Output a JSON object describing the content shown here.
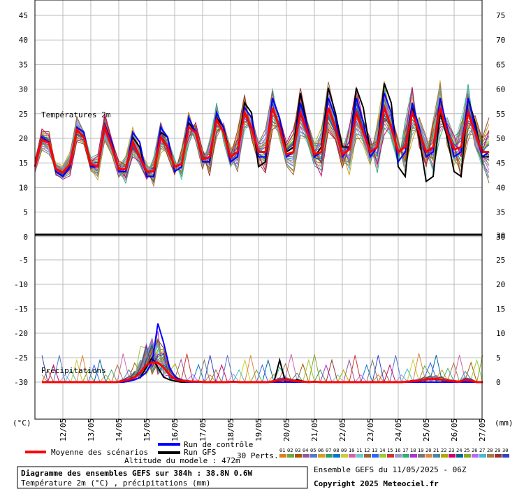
{
  "chart_data": [
    {
      "type": "line",
      "panel": "temperature",
      "annotation": "Températures 2m",
      "x_tick_labels": [
        "12/05",
        "13/05",
        "14/05",
        "15/05",
        "16/05",
        "17/05",
        "18/05",
        "19/05",
        "20/05",
        "21/05",
        "22/05",
        "23/05",
        "24/05",
        "25/05",
        "26/05",
        "27/05"
      ],
      "y_left_ticks": [
        "45",
        "40",
        "35",
        "30",
        "25",
        "20",
        "15",
        "10",
        "5",
        "0"
      ],
      "y_right_ticks": [
        "75",
        "70",
        "65",
        "60",
        "55",
        "50",
        "45",
        "40",
        "35",
        "30"
      ],
      "ylim": [
        0,
        47
      ],
      "series": [
        {
          "name": "Moyenne des scénarios",
          "color": "#ff0000",
          "values": [
            14,
            19.5,
            18.8,
            13.5,
            12.8,
            14.5,
            21.5,
            20,
            14.5,
            14,
            22,
            18,
            13.5,
            13.5,
            19,
            16,
            13,
            13,
            20,
            18,
            14,
            14.5,
            22,
            21,
            15.5,
            16,
            23.5,
            21,
            16,
            17,
            25,
            22,
            17,
            17,
            26,
            22,
            16.5,
            17,
            25,
            21,
            16.5,
            17,
            26,
            22,
            16.5,
            17.5,
            25,
            21,
            17,
            18,
            26,
            22,
            17,
            18,
            25,
            21,
            17,
            18,
            26,
            21,
            17.5,
            18,
            25,
            21,
            17,
            17
          ]
        },
        {
          "name": "Run de contrôle",
          "color": "#0000ff",
          "values": [
            14,
            20,
            19,
            13,
            12,
            14,
            22,
            21,
            14,
            14,
            22.5,
            19,
            13,
            13,
            21,
            19,
            12,
            12,
            22,
            20,
            13,
            14,
            24,
            21,
            15,
            15,
            25,
            22,
            15,
            16,
            26,
            24,
            16,
            16,
            28,
            24,
            16,
            17,
            27,
            22,
            16,
            17,
            28,
            24,
            16,
            18,
            28,
            23,
            16,
            18,
            29,
            25,
            15,
            17,
            27,
            22,
            16,
            17,
            28,
            22,
            16,
            17,
            28,
            22,
            16,
            17
          ]
        },
        {
          "name": "Run GFS",
          "color": "#000000",
          "values": [
            14,
            20,
            19,
            13,
            12,
            14,
            22,
            21,
            14,
            14,
            22,
            19,
            13,
            13,
            20,
            18,
            12,
            12,
            21,
            20,
            13,
            14,
            23,
            21,
            15,
            15,
            24,
            22,
            16,
            17,
            27,
            25,
            14,
            15,
            28,
            24,
            17,
            18,
            29,
            22,
            16,
            18,
            30,
            25,
            18,
            18,
            30,
            26,
            17,
            18,
            31,
            27,
            14,
            12,
            26,
            20,
            11,
            12,
            25,
            20,
            13,
            12,
            28,
            23,
            16,
            16
          ]
        }
      ]
    },
    {
      "type": "line",
      "panel": "precipitation",
      "annotation": "Précipitations",
      "unit_left": "(°C)",
      "unit_right": "(mm)",
      "y_left_ticks": [
        "-5",
        "-10",
        "-15",
        "-20",
        "-25",
        "-30"
      ],
      "y_right_ticks": [
        "30",
        "25",
        "20",
        "15",
        "10",
        "5",
        "0"
      ],
      "ylim": [
        0,
        30
      ],
      "series": [
        {
          "name": "Moyenne des scénarios",
          "color": "#ff0000",
          "values": [
            0,
            0,
            0,
            0,
            0,
            0,
            0,
            0,
            0,
            0,
            0,
            0,
            0,
            0,
            0.3,
            0.5,
            1,
            2,
            3.5,
            4,
            4,
            3,
            1.5,
            0.6,
            0.3,
            0.2,
            0.1,
            0.1,
            0,
            0,
            0,
            0,
            0,
            0.1,
            0,
            0,
            0,
            0,
            0,
            0,
            0.2,
            0.4,
            0.5,
            0.3,
            0.2,
            0.1,
            0,
            0.1,
            0,
            0,
            0,
            0,
            0,
            0,
            0,
            0,
            0,
            0,
            0,
            0,
            0,
            0,
            0,
            0.1,
            0.2,
            0.3,
            0.5,
            0.6,
            0.6,
            0.5,
            0.3,
            0.2,
            0.1,
            0.5,
            0.3,
            0,
            0
          ]
        },
        {
          "name": "Run de contrôle",
          "color": "#0000ff",
          "values": [
            0,
            0,
            0,
            0,
            0,
            0,
            0,
            0,
            0,
            0,
            0,
            0,
            0,
            0,
            0,
            0.2,
            0.5,
            1,
            2,
            4,
            12,
            8,
            3,
            1,
            0.5,
            0,
            0,
            0,
            0,
            0,
            0,
            0,
            0,
            0,
            0,
            0,
            0,
            0,
            0,
            0,
            0,
            0,
            0,
            0,
            0,
            0,
            0,
            0,
            0,
            0,
            0,
            0,
            0,
            0,
            0,
            0,
            0,
            0,
            0,
            0,
            0,
            0,
            0,
            0,
            0,
            0,
            0,
            0,
            0,
            0,
            0,
            0,
            0,
            0,
            0,
            0,
            0
          ]
        },
        {
          "name": "Run GFS",
          "color": "#000000",
          "values": [
            0,
            0,
            0,
            0,
            0,
            0,
            0,
            0,
            0,
            0,
            0,
            0,
            0,
            0,
            0,
            0.2,
            0.5,
            1,
            3,
            5,
            3,
            1,
            0.5,
            0.2,
            0,
            0,
            0,
            0,
            0,
            0,
            0,
            0,
            0,
            0,
            0,
            0,
            0,
            0,
            0,
            0,
            0,
            4.5,
            0,
            0,
            0.5,
            0.2,
            0,
            0,
            0,
            0,
            0,
            0,
            0,
            0,
            0,
            0,
            0,
            0,
            0,
            0,
            0,
            0,
            0,
            0,
            0,
            0,
            0,
            0,
            0,
            0,
            0,
            0,
            0,
            0,
            0,
            0,
            0
          ]
        }
      ]
    }
  ],
  "legend": {
    "mean": "Moyenne des scénarios",
    "control": "Run de contrôle",
    "gfs": "Run GFS",
    "perts_label": "30 Perts.",
    "altitude": "Altitude du modele : 472m",
    "pert_numbers": [
      "01",
      "02",
      "03",
      "04",
      "05",
      "06",
      "07",
      "08",
      "09",
      "10",
      "11",
      "12",
      "13",
      "14",
      "15",
      "16",
      "17",
      "18",
      "19",
      "20",
      "21",
      "22",
      "23",
      "24",
      "25",
      "26",
      "27",
      "28",
      "29",
      "30"
    ],
    "pert_colors": [
      "#e07b20",
      "#66aa44",
      "#aa5500",
      "#995599",
      "#5577cc",
      "#d4a017",
      "#339966",
      "#0077cc",
      "#cccc33",
      "#cc66aa",
      "#66cccc",
      "#996633",
      "#3366ff",
      "#99cc33",
      "#cc3333",
      "#9999cc",
      "#33aa77",
      "#aa33cc",
      "#777777",
      "#dd8844",
      "#4488aa",
      "#aaaa00",
      "#cc0066",
      "#006699",
      "#88aa22",
      "#bb66ff",
      "#44bbcc",
      "#aa7744",
      "#993333",
      "#3344bb"
    ]
  },
  "footer": {
    "title": "Diagramme des ensembles GEFS sur 384h : 38.8N 0.6W",
    "subtitle": "Température 2m (°C) , précipitations (mm)",
    "run_info": "Ensemble GEFS du 11/05/2025 - 06Z",
    "copyright": "Copyright 2025 Meteociel.fr"
  }
}
